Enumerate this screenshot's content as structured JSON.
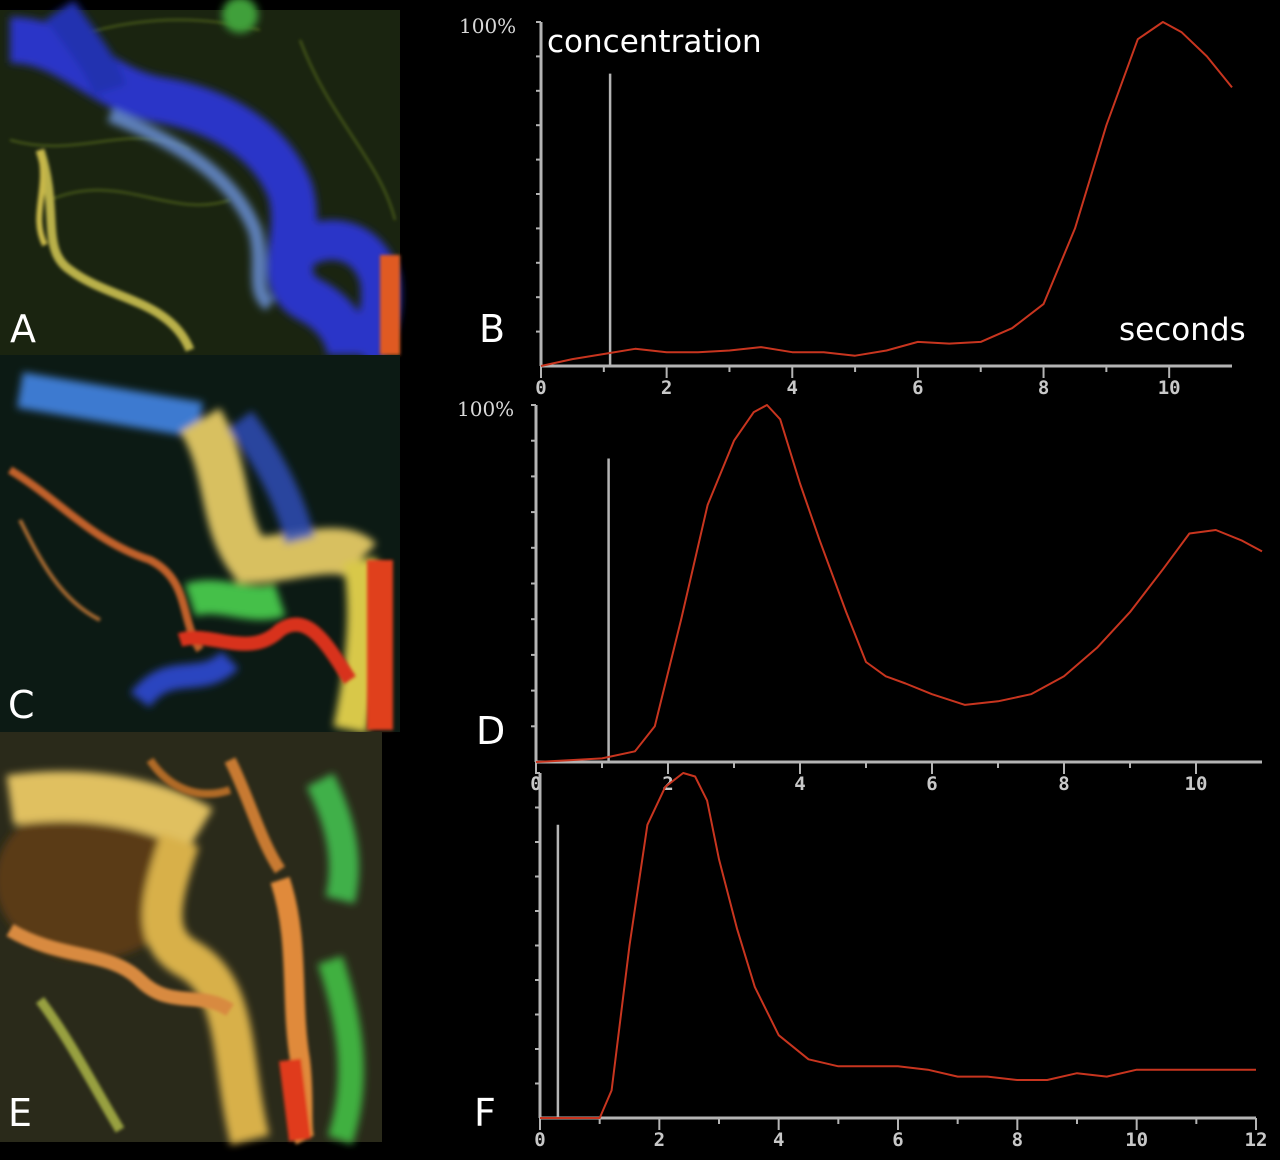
{
  "panels": {
    "a": {
      "letter": "A"
    },
    "c": {
      "letter": "C"
    },
    "e": {
      "letter": "E"
    }
  },
  "colors": {
    "curve": "#c8351f",
    "axis": "#b4b4b4",
    "background": "#000000"
  },
  "chart_data": [
    {
      "type": "line",
      "panel_label": "B",
      "ylabel": "concentration",
      "xlabel": "seconds",
      "y_top_label": "100%",
      "xlim": [
        0,
        11
      ],
      "ylim": [
        0,
        100
      ],
      "x_ticks": [
        0,
        2,
        4,
        6,
        8,
        10
      ],
      "x_tick_labels": [
        "0",
        "2",
        "4",
        "6",
        "8",
        "10"
      ],
      "marker_x": 1.1,
      "series": [
        {
          "x": [
            0,
            0.5,
            1.0,
            1.5,
            2.0,
            2.5,
            3.0,
            3.5,
            4.0,
            4.5,
            5.0,
            5.5,
            6.0,
            6.5,
            7.0,
            7.5,
            8.0,
            8.5,
            9.0,
            9.5,
            9.9,
            10.2,
            10.6,
            11.0
          ],
          "y": [
            0,
            2,
            3.5,
            5,
            4,
            4,
            4.5,
            5.5,
            4,
            4,
            3,
            4.5,
            7,
            6.5,
            7,
            11,
            18,
            40,
            70,
            95,
            100,
            97,
            90,
            81
          ]
        }
      ]
    },
    {
      "type": "line",
      "panel_label": "D",
      "y_top_label": "100%",
      "xlim": [
        0,
        11
      ],
      "ylim": [
        0,
        100
      ],
      "x_ticks": [
        0,
        2,
        4,
        6,
        8,
        10
      ],
      "x_tick_labels": [
        "0",
        "2",
        "4",
        "6",
        "8",
        "10"
      ],
      "marker_x": 1.1,
      "series": [
        {
          "x": [
            0,
            0.5,
            1.0,
            1.5,
            1.8,
            2.2,
            2.6,
            3.0,
            3.3,
            3.5,
            3.7,
            4.0,
            4.3,
            4.7,
            5.0,
            5.3,
            5.6,
            6.0,
            6.5,
            7.0,
            7.5,
            8.0,
            8.5,
            9.0,
            9.5,
            9.9,
            10.3,
            10.7,
            11.0
          ],
          "y": [
            0,
            0.5,
            1,
            3,
            10,
            40,
            72,
            90,
            98,
            100,
            96,
            78,
            62,
            42,
            28,
            24,
            22,
            19,
            16,
            17,
            19,
            24,
            32,
            42,
            54,
            64,
            65,
            62,
            59
          ]
        }
      ]
    },
    {
      "type": "line",
      "panel_label": "F",
      "xlim": [
        0,
        12
      ],
      "ylim": [
        0,
        100
      ],
      "x_ticks": [
        0,
        2,
        4,
        6,
        8,
        10,
        12
      ],
      "x_tick_labels": [
        "0",
        "2",
        "4",
        "6",
        "8",
        "10",
        "12"
      ],
      "marker_x": 0.3,
      "series": [
        {
          "x": [
            0,
            0.5,
            1.0,
            1.2,
            1.5,
            1.8,
            2.1,
            2.4,
            2.6,
            2.8,
            3.0,
            3.3,
            3.6,
            4.0,
            4.5,
            5.0,
            5.5,
            6.0,
            6.5,
            7.0,
            7.5,
            8.0,
            8.5,
            9.0,
            9.5,
            10.0,
            10.5,
            11.0,
            11.5,
            12.0
          ],
          "y": [
            0,
            0,
            0,
            8,
            50,
            85,
            96,
            100,
            99,
            92,
            75,
            55,
            38,
            24,
            17,
            15,
            15,
            15,
            14,
            12,
            12,
            11,
            11,
            13,
            12,
            14,
            14,
            14,
            14,
            14
          ]
        }
      ]
    }
  ]
}
